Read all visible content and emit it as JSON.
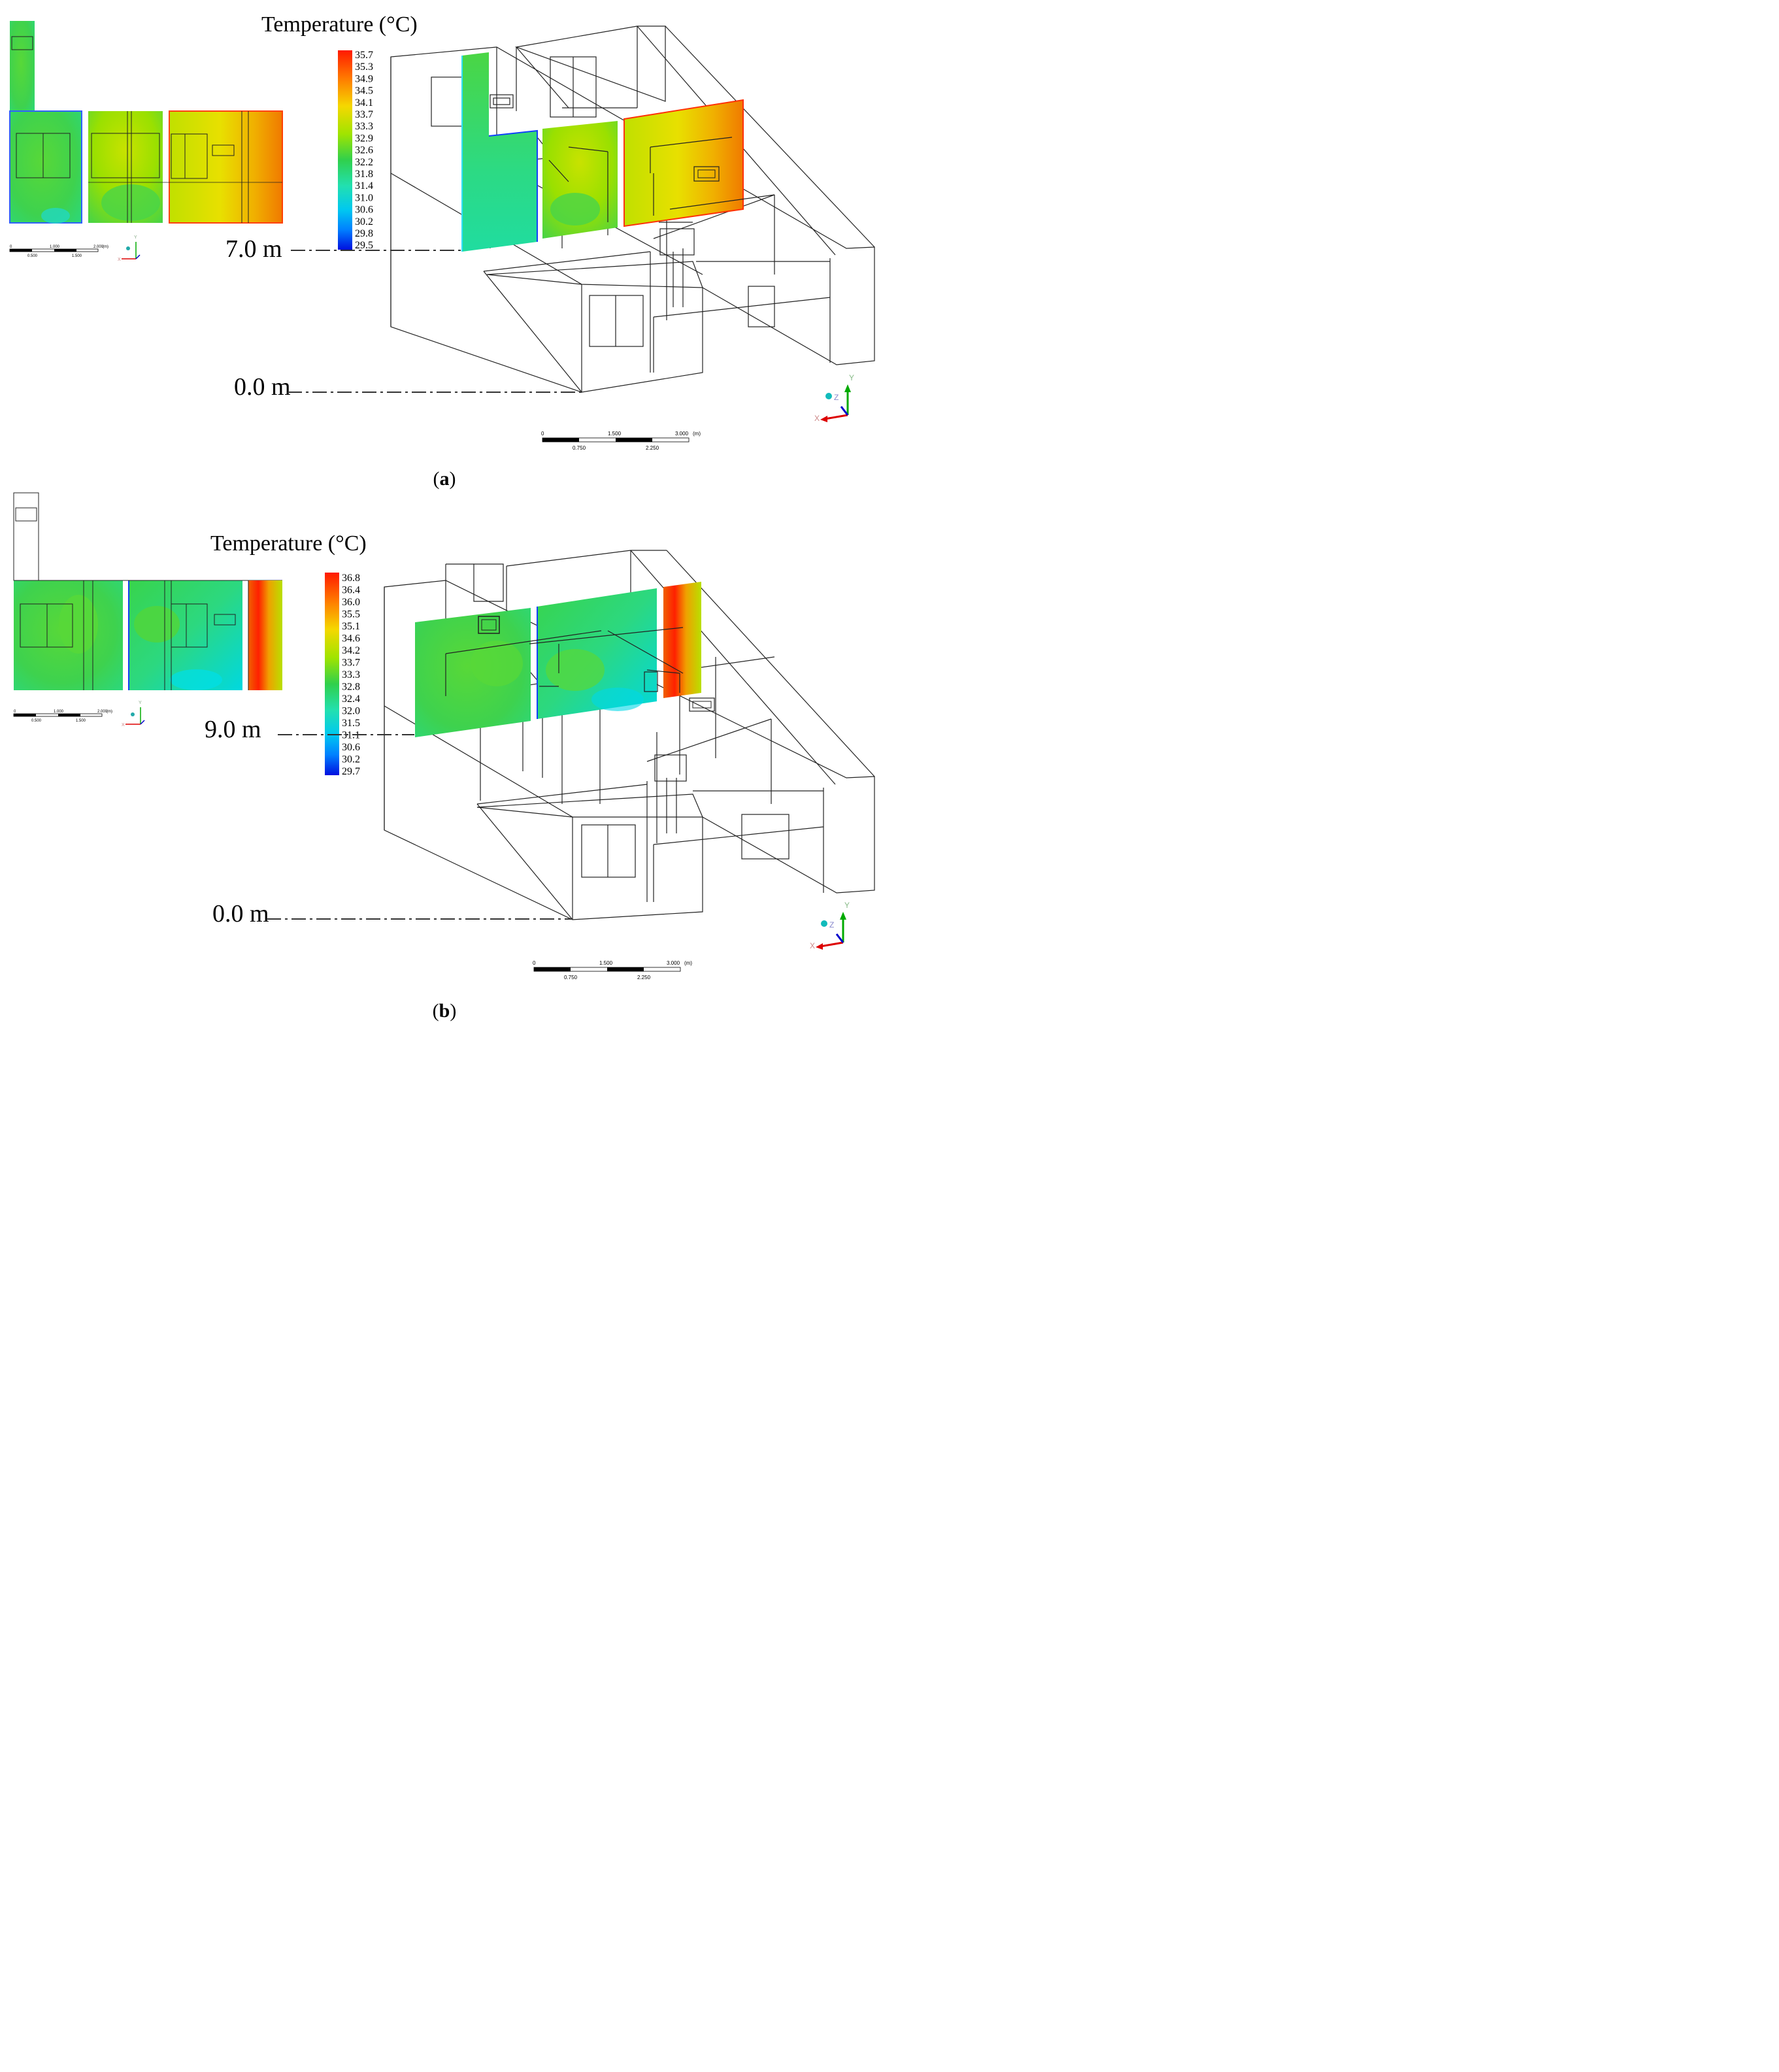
{
  "panels": [
    {
      "id": "a",
      "caption_letter": "a",
      "legend_title": "Temperature (°C)",
      "legend_ticks": [
        "35.7",
        "35.3",
        "34.9",
        "34.5",
        "34.1",
        "33.7",
        "33.3",
        "32.9",
        "32.6",
        "32.2",
        "31.8",
        "31.4",
        "31.0",
        "30.6",
        "30.2",
        "29.8",
        "29.5"
      ],
      "level_high": "7.0 m",
      "level_low": "0.0 m",
      "small_scale": {
        "top": [
          "0",
          "1.000",
          "2.000",
          "(m)"
        ],
        "bottom": [
          "0.500",
          "1.500"
        ]
      },
      "big_scale": {
        "top": [
          "0",
          "1.500",
          "3.000",
          "(m)"
        ],
        "bottom": [
          "0.750",
          "2.250"
        ]
      },
      "axes": {
        "x": "X",
        "y": "Y",
        "z": "Z"
      }
    },
    {
      "id": "b",
      "caption_letter": "b",
      "legend_title": "Temperature (°C)",
      "legend_ticks": [
        "36.8",
        "36.4",
        "36.0",
        "35.5",
        "35.1",
        "34.6",
        "34.2",
        "33.7",
        "33.3",
        "32.8",
        "32.4",
        "32.0",
        "31.5",
        "31.1",
        "30.6",
        "30.2",
        "29.7"
      ],
      "level_high": "9.0 m",
      "level_low": "0.0 m",
      "small_scale": {
        "top": [
          "0",
          "1.000",
          "2.000",
          "(m)"
        ],
        "bottom": [
          "0.500",
          "1.500"
        ]
      },
      "big_scale": {
        "top": [
          "0",
          "1.500",
          "3.000",
          "(m)"
        ],
        "bottom": [
          "0.750",
          "2.250"
        ]
      },
      "axes": {
        "x": "X",
        "y": "Y",
        "z": "Z"
      }
    }
  ],
  "colors": {
    "scale": [
      "#ff1a00",
      "#ff6a00",
      "#ffb000",
      "#f0e000",
      "#a8e600",
      "#3ed24a",
      "#22e0a0",
      "#00d0e8",
      "#0090ff",
      "#0000e6"
    ]
  }
}
